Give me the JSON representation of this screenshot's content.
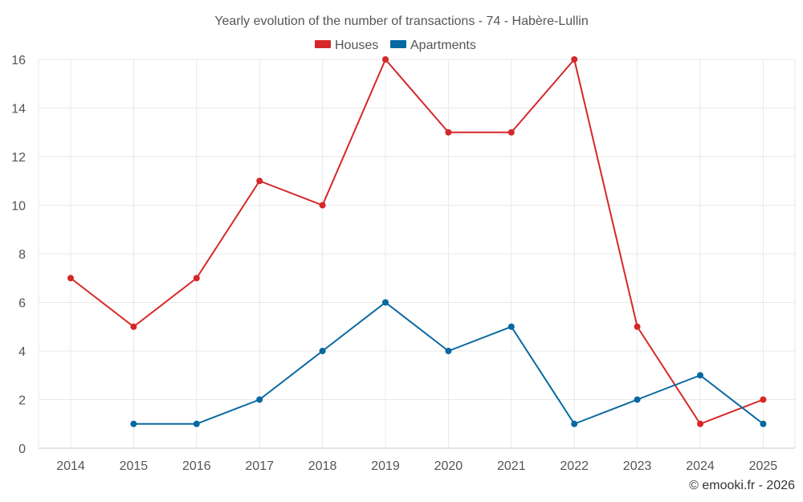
{
  "chart_data": {
    "type": "line",
    "title": "Yearly evolution of the number of transactions - 74 - Habère-Lullin",
    "categories": [
      "2014",
      "2015",
      "2016",
      "2017",
      "2018",
      "2019",
      "2020",
      "2021",
      "2022",
      "2023",
      "2024",
      "2025"
    ],
    "series": [
      {
        "name": "Houses",
        "color": "#d62728",
        "values": [
          7,
          5,
          7,
          11,
          10,
          16,
          13,
          13,
          16,
          5,
          1,
          2
        ]
      },
      {
        "name": "Apartments",
        "color": "#0868a0",
        "values": [
          null,
          1,
          1,
          2,
          4,
          6,
          4,
          5,
          1,
          2,
          3,
          1
        ]
      }
    ],
    "ylim": [
      0,
      16
    ],
    "yticks": [
      "0",
      "2",
      "4",
      "6",
      "8",
      "10",
      "12",
      "14",
      "16"
    ],
    "xlabel": "",
    "ylabel": "",
    "grid": true,
    "legend": "top-center"
  },
  "credit": "© emooki.fr - 2026"
}
